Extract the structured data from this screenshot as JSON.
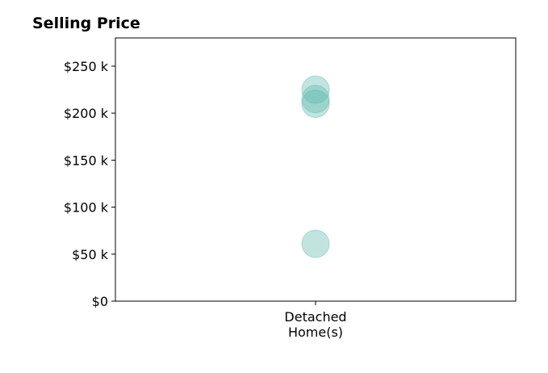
{
  "chart_data": {
    "type": "scatter",
    "title": "Selling Price",
    "xlabel": "",
    "ylabel": "",
    "categories": [
      [
        "Detached",
        "Home(s)"
      ]
    ],
    "ylim": [
      0,
      280000
    ],
    "yticks": [
      0,
      50000,
      100000,
      150000,
      200000,
      250000
    ],
    "ytick_labels": [
      "$0",
      "$50 k",
      "$100 k",
      "$150 k",
      "$200 k",
      "$250 k"
    ],
    "grid": false,
    "series": [
      {
        "category": 0,
        "values": [
          225000,
          215000,
          210000,
          61000
        ],
        "color": "#5fb8ad"
      }
    ]
  }
}
